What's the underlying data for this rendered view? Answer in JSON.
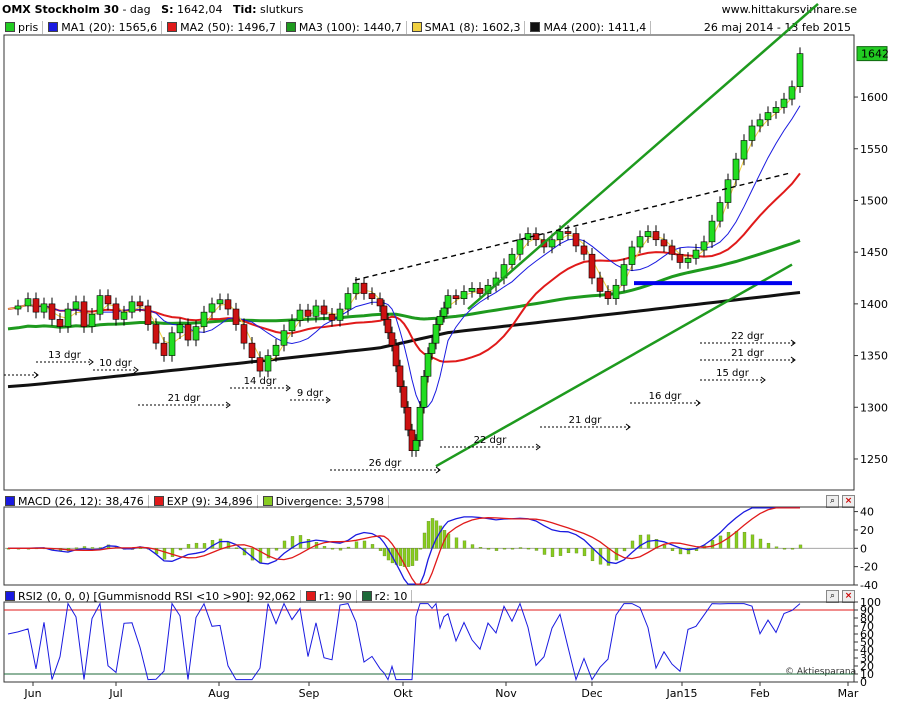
{
  "header": {
    "instrument": "OMX Stockholm 30",
    "interval": "dag",
    "last_label": "S:",
    "last_value": "1642,04",
    "time_label": "Tid:",
    "time_value": "slutkurs",
    "site": "www.hittakursvinnare.se",
    "date_range": "26 maj 2014 - 13 feb 2015"
  },
  "price_legend": [
    {
      "label": "pris",
      "color": "#22cc22"
    },
    {
      "label": "MA1 (20): 1565,6",
      "color": "#1a1ae0"
    },
    {
      "label": "MA2 (50): 1496,7",
      "color": "#e01a1a"
    },
    {
      "label": "MA3 (100): 1440,7",
      "color": "#1e9a1e"
    },
    {
      "label": "SMA1 (8): 1602,3",
      "color": "#f0d040"
    },
    {
      "label": "MA4 (200): 1411,4",
      "color": "#111111"
    }
  ],
  "macd_legend": [
    {
      "label": "MACD (26, 12): 38,476",
      "color": "#1a1ae0"
    },
    {
      "label": "EXP (9): 34,896",
      "color": "#e01a1a"
    },
    {
      "label": "Divergence: 3,5798",
      "color": "#88cc22"
    }
  ],
  "rsi_legend": [
    {
      "label": "RSI2 (0, 0, 0) [Gummisnodd RSI <10 >90]: 92,062",
      "color": "#1a1ae0"
    },
    {
      "label": "r1: 90",
      "color": "#e01a1a"
    },
    {
      "label": "r2: 10",
      "color": "#1e6a3a"
    }
  ],
  "last_price_tag": "1642",
  "watermark": "© Aktiespara­na",
  "chart_data": [
    {
      "type": "candlestick",
      "title": "OMX Stockholm 30",
      "x_ticks": [
        "Jun",
        "Jul",
        "Aug",
        "Sep",
        "Okt",
        "Nov",
        "Dec",
        "Jan15",
        "Feb",
        "Mar"
      ],
      "y_ticks": [
        1250,
        1300,
        1350,
        1400,
        1450,
        1500,
        1550,
        1600
      ],
      "ylim": [
        1220,
        1660
      ],
      "last_close": 1642,
      "close_path": [
        [
          0,
          1395
        ],
        [
          5,
          1398
        ],
        [
          10,
          1405
        ],
        [
          14,
          1392
        ],
        [
          18,
          1400
        ],
        [
          22,
          1385
        ],
        [
          26,
          1378
        ],
        [
          30,
          1395
        ],
        [
          34,
          1402
        ],
        [
          38,
          1378
        ],
        [
          42,
          1390
        ],
        [
          46,
          1408
        ],
        [
          50,
          1400
        ],
        [
          54,
          1385
        ],
        [
          58,
          1392
        ],
        [
          62,
          1402
        ],
        [
          66,
          1398
        ],
        [
          70,
          1380
        ],
        [
          74,
          1362
        ],
        [
          78,
          1350
        ],
        [
          82,
          1372
        ],
        [
          86,
          1380
        ],
        [
          90,
          1365
        ],
        [
          94,
          1378
        ],
        [
          98,
          1392
        ],
        [
          102,
          1400
        ],
        [
          106,
          1404
        ],
        [
          110,
          1395
        ],
        [
          114,
          1380
        ],
        [
          118,
          1362
        ],
        [
          122,
          1348
        ],
        [
          126,
          1335
        ],
        [
          130,
          1350
        ],
        [
          134,
          1360
        ],
        [
          138,
          1374
        ],
        [
          142,
          1384
        ],
        [
          146,
          1394
        ],
        [
          150,
          1388
        ],
        [
          154,
          1398
        ],
        [
          158,
          1390
        ],
        [
          162,
          1384
        ],
        [
          166,
          1395
        ],
        [
          170,
          1410
        ],
        [
          174,
          1420
        ],
        [
          178,
          1410
        ],
        [
          182,
          1405
        ],
        [
          186,
          1398
        ],
        [
          188,
          1385
        ],
        [
          190,
          1372
        ],
        [
          192,
          1360
        ],
        [
          194,
          1340
        ],
        [
          196,
          1320
        ],
        [
          198,
          1300
        ],
        [
          200,
          1278
        ],
        [
          202,
          1258
        ],
        [
          204,
          1268
        ],
        [
          206,
          1300
        ],
        [
          208,
          1330
        ],
        [
          210,
          1352
        ],
        [
          212,
          1362
        ],
        [
          214,
          1380
        ],
        [
          216,
          1388
        ],
        [
          218,
          1396
        ],
        [
          220,
          1408
        ],
        [
          224,
          1405
        ],
        [
          228,
          1412
        ],
        [
          232,
          1415
        ],
        [
          236,
          1410
        ],
        [
          240,
          1418
        ],
        [
          244,
          1425
        ],
        [
          248,
          1438
        ],
        [
          252,
          1448
        ],
        [
          256,
          1462
        ],
        [
          260,
          1468
        ],
        [
          264,
          1462
        ],
        [
          268,
          1455
        ],
        [
          272,
          1462
        ],
        [
          276,
          1470
        ],
        [
          280,
          1468
        ],
        [
          284,
          1456
        ],
        [
          288,
          1448
        ],
        [
          292,
          1425
        ],
        [
          296,
          1412
        ],
        [
          300,
          1405
        ],
        [
          304,
          1418
        ],
        [
          308,
          1438
        ],
        [
          312,
          1455
        ],
        [
          316,
          1465
        ],
        [
          320,
          1470
        ],
        [
          324,
          1462
        ],
        [
          328,
          1456
        ],
        [
          332,
          1448
        ],
        [
          336,
          1440
        ],
        [
          340,
          1444
        ],
        [
          344,
          1452
        ],
        [
          348,
          1460
        ],
        [
          352,
          1480
        ],
        [
          356,
          1498
        ],
        [
          360,
          1520
        ],
        [
          364,
          1540
        ],
        [
          368,
          1558
        ],
        [
          372,
          1572
        ],
        [
          376,
          1578
        ],
        [
          380,
          1585
        ],
        [
          384,
          1590
        ],
        [
          388,
          1598
        ],
        [
          392,
          1610
        ],
        [
          396,
          1642
        ]
      ],
      "series": [
        {
          "name": "MA1 (20)",
          "last": 1565.6
        },
        {
          "name": "MA2 (50)",
          "last": 1496.7
        },
        {
          "name": "MA3 (100)",
          "last": 1440.7
        },
        {
          "name": "SMA1 (8)",
          "last": 1602.3
        },
        {
          "name": "MA4 (200)",
          "last": 1411.4
        }
      ],
      "cycle_annotations": [
        "13 dgr",
        "10 dgr",
        "21 dgr",
        "14 dgr",
        "9 dgr",
        "26 dgr",
        "22 dgr",
        "21 dgr",
        "16 dgr",
        "22 dgr",
        "21 dgr",
        "15 dgr"
      ],
      "support_level": 1420
    },
    {
      "type": "line",
      "title": "MACD (26, 12)",
      "y_ticks": [
        -40,
        -20,
        0,
        20,
        40
      ],
      "ylim": [
        -40,
        45
      ],
      "series": [
        {
          "name": "MACD (26, 12)",
          "last": 38.476
        },
        {
          "name": "EXP (9)",
          "last": 34.896
        },
        {
          "name": "Divergence",
          "last": 3.5798
        }
      ]
    },
    {
      "type": "line",
      "title": "RSI2",
      "y_ticks": [
        0,
        10,
        20,
        30,
        40,
        50,
        60,
        70,
        80,
        90,
        100
      ],
      "ylim": [
        0,
        100
      ],
      "series": [
        {
          "name": "RSI2",
          "last": 92.062
        },
        {
          "name": "r1",
          "value": 90
        },
        {
          "name": "r2",
          "value": 10
        }
      ]
    }
  ]
}
